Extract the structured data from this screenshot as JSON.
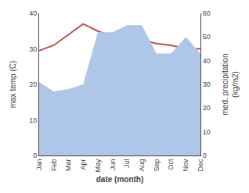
{
  "chart_data": {
    "type": "line",
    "categories": [
      "Jan",
      "Feb",
      "Mar",
      "Apr",
      "May",
      "Jun",
      "Jul",
      "Aug",
      "Sep",
      "Oct",
      "Nov",
      "Dec"
    ],
    "xlabel": "date (month)",
    "ylabel": "max temp (C)",
    "y2label": "med. precipitation\n(kg/m2)",
    "ylim": [
      0,
      40
    ],
    "yticks": [
      0,
      10,
      20,
      30,
      40
    ],
    "y2lim": [
      0,
      60
    ],
    "y2ticks": [
      0,
      10,
      20,
      30,
      40,
      50,
      60
    ],
    "grid": false,
    "series": [
      {
        "type": "area",
        "axis": "y2",
        "color": "#aec6e8",
        "values": [
          31.0,
          27.0,
          28.0,
          30.0,
          52.0,
          52.0,
          55.0,
          55.0,
          43.0,
          43.0,
          50.0,
          43.0
        ]
      },
      {
        "type": "line",
        "color": "#c0504d",
        "values": [
          29.5,
          31.0,
          34.0,
          37.0,
          35.0,
          33.5,
          32.5,
          32.5,
          31.5,
          31.0,
          30.0,
          30.0
        ]
      }
    ]
  }
}
